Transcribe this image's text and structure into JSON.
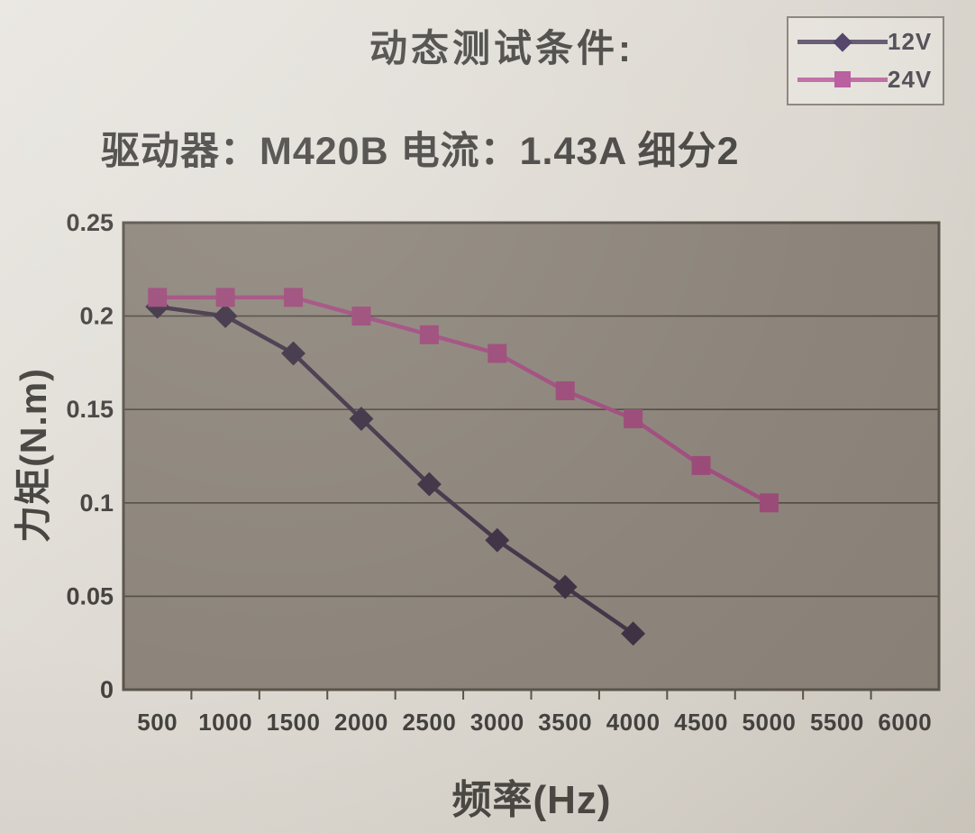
{
  "page": {
    "title": "动态测试条件:",
    "subtitle": "驱动器：M420B  电流：1.43A  细分2",
    "paper_color": "#dcd8d1",
    "ink_color": "#4a4845"
  },
  "legend": {
    "position": "top-right",
    "border_color": "#8e887f",
    "items": [
      {
        "label": "12V",
        "marker": "diamond",
        "line_color": "#6a5e77",
        "marker_color": "#54476a"
      },
      {
        "label": "24V",
        "marker": "square",
        "line_color": "#c172a8",
        "marker_color": "#bb5fa0"
      }
    ]
  },
  "chart_data": {
    "type": "line",
    "title": "动态测试条件:",
    "xlabel": "频率(Hz)",
    "ylabel": "力矩(N.m)",
    "x_ticks": [
      500,
      1000,
      1500,
      2000,
      2500,
      3000,
      3500,
      4000,
      4500,
      5000,
      5500,
      6000
    ],
    "y_ticks": [
      0,
      0.05,
      0.1,
      0.15,
      0.2,
      0.25
    ],
    "y_tick_labels": [
      "0",
      "0.05",
      "0.1",
      "0.15",
      "0.2",
      "0.25"
    ],
    "ylim": [
      0,
      0.25
    ],
    "xlim": [
      0,
      6250
    ],
    "grid": "horizontal",
    "legend_position": "top-right",
    "plot_bg": "#8d857b",
    "grid_color": "#4b463f",
    "border_color": "#5a544b",
    "tick_text_color": "#44423f",
    "series": [
      {
        "name": "12V",
        "marker": "diamond",
        "color": "#443649",
        "marker_color": "#3e3244",
        "x": [
          500,
          1000,
          1500,
          2000,
          2500,
          3000,
          3500,
          4000
        ],
        "values": [
          0.205,
          0.2,
          0.18,
          0.145,
          0.11,
          0.08,
          0.055,
          0.03
        ]
      },
      {
        "name": "24V",
        "marker": "square",
        "color": "#a24e80",
        "marker_color": "#9c4b79",
        "x": [
          500,
          1000,
          1500,
          2000,
          2500,
          3000,
          3500,
          4000,
          4500,
          5000
        ],
        "values": [
          0.21,
          0.21,
          0.21,
          0.2,
          0.19,
          0.18,
          0.16,
          0.145,
          0.12,
          0.1
        ]
      }
    ]
  }
}
